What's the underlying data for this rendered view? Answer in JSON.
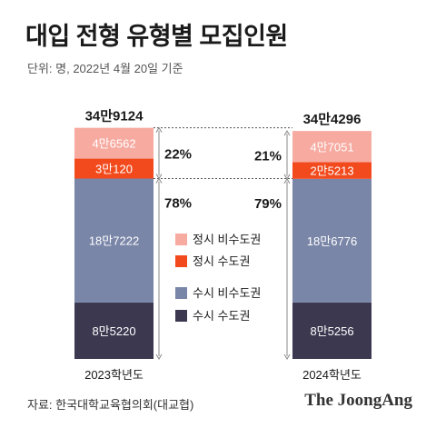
{
  "title": "대입 전형 유형별 모집인원",
  "subtitle": "단위: 명, 2022년 4월 20일 기준",
  "source": "자료: 한국대학교육협의회(대교협)",
  "brand": "The JoongAng",
  "colors": {
    "jeongsi_nonmetro": "#f7aaa0",
    "jeongsi_metro": "#f24a1d",
    "susi_nonmetro": "#7a86a8",
    "susi_metro": "#3b3850",
    "guide": "#888888"
  },
  "chart_data": {
    "type": "bar",
    "stacked": true,
    "categories": [
      "2023학년도",
      "2024학년도"
    ],
    "totals": [
      "34만9124",
      "34만4296"
    ],
    "series": [
      {
        "name": "수시 수도권",
        "values": [
          85220,
          85256
        ],
        "labels": [
          "8만5220",
          "8만5256"
        ]
      },
      {
        "name": "수시 비수도권",
        "values": [
          187222,
          186776
        ],
        "labels": [
          "18만7222",
          "18만6776"
        ]
      },
      {
        "name": "정시 수도권",
        "values": [
          30120,
          25213
        ],
        "labels": [
          "3만120",
          "2만5213"
        ]
      },
      {
        "name": "정시 비수도권",
        "values": [
          46562,
          47051
        ],
        "labels": [
          "4만6562",
          "4만7051"
        ]
      }
    ],
    "shares": {
      "jeongsi": [
        "22%",
        "21%"
      ],
      "susi": [
        "78%",
        "79%"
      ]
    },
    "legend": [
      "정시 비수도권",
      "정시 수도권",
      "수시 비수도권",
      "수시 수도권"
    ]
  }
}
